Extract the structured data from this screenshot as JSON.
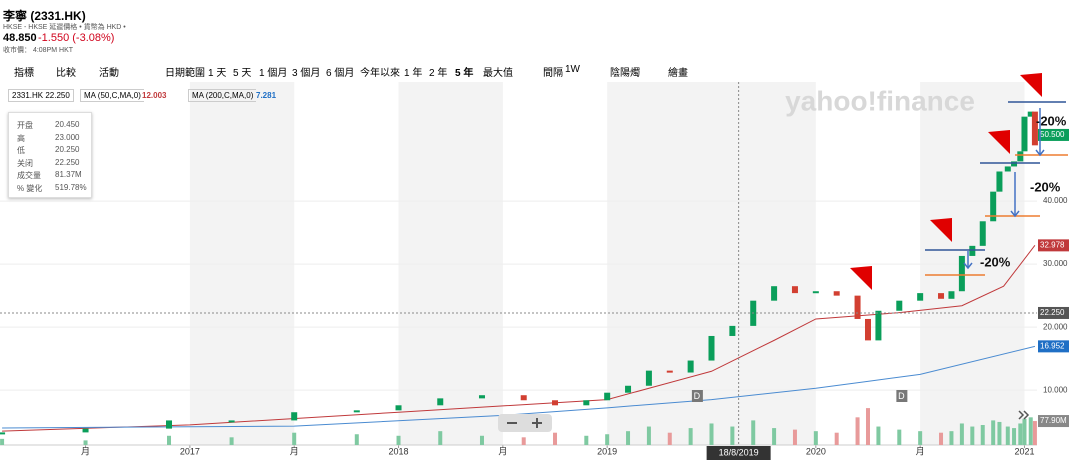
{
  "header": {
    "title": "李寧 (2331.HK)",
    "subtitle": "HKSE - HKSE 延遲價格 • 貨幣為 HKD •",
    "price": "48.850",
    "change": "-1.550 (-3.08%)",
    "close_time": "收市價： 4:08PM HKT"
  },
  "toolbar": {
    "left": [
      "指標",
      "比較",
      "活動"
    ],
    "ranges": [
      "日期範圍",
      "1 天",
      "5 天",
      "1 個月",
      "3 個月",
      "6 個月",
      "今年以來",
      "1 年",
      "2 年",
      "5 年",
      "最大值"
    ],
    "interval": "間隔",
    "interval_value": "1W",
    "chart_type": "陰陽燭",
    "draw": "繪畫"
  },
  "legend": {
    "symbol": "2331.HK 22.250",
    "ma50": "MA (50,C,MA,0)",
    "ma50_value": "12.003",
    "ma200": "MA (200,C,MA,0)",
    "ma200_value": "7.281"
  },
  "tooltip": {
    "labels": [
      "开盘",
      "高",
      "低",
      "关闭",
      "成交量",
      "% 變化"
    ],
    "values": [
      "20.450",
      "23.000",
      "20.250",
      "22.250",
      "81.37M",
      "519.78%"
    ]
  },
  "chart_data": {
    "type": "candlestick",
    "watermark": "yahoo!finance",
    "x": [
      2016.1,
      2016.5,
      2016.9,
      2017.2,
      2017.5,
      2017.8,
      2018.0,
      2018.2,
      2018.4,
      2018.6,
      2018.75,
      2018.9,
      2019.0,
      2019.1,
      2019.2,
      2019.3,
      2019.4,
      2019.5,
      2019.6,
      2019.7,
      2019.8,
      2019.9,
      2020.0,
      2020.1,
      2020.2,
      2020.25,
      2020.3,
      2020.4,
      2020.5,
      2020.6,
      2020.65,
      2020.7,
      2020.75,
      2020.8,
      2020.85,
      2020.88,
      2020.92,
      2020.95,
      2020.98,
      2021.0,
      2021.03,
      2021.05
    ],
    "series": [
      {
        "name": "2331.HK",
        "color": "#0a9e5a",
        "values": [
          3.3,
          3.9,
          5.2,
          5.2,
          6.5,
          6.8,
          7.6,
          8.7,
          9.2,
          8.4,
          7.6,
          8.4,
          9.6,
          10.7,
          13.1,
          12.8,
          14.7,
          18.6,
          20.2,
          24.2,
          26.5,
          25.4,
          25.7,
          25,
          21.3,
          17.9,
          22.6,
          24.2,
          25.4,
          24.5,
          25.7,
          31.3,
          32.9,
          36.8,
          41.5,
          44.7,
          45.5,
          46.3,
          47.9,
          53.4,
          54.2,
          48.85
        ]
      },
      {
        "name": "MA (50,C,MA,0)",
        "color": "#c0393b",
        "x": [
          2016.1,
          2017.0,
          2018.0,
          2018.5,
          2019.0,
          2019.5,
          2019.8,
          2020.0,
          2020.4,
          2020.7,
          2020.9,
          2021.05
        ],
        "values": [
          3.5,
          4.5,
          6.5,
          7.5,
          8.5,
          13,
          17.9,
          21.3,
          22.3,
          23.4,
          26.5,
          32.978
        ]
      },
      {
        "name": "MA (200,C,MA,0)",
        "color": "#4a8bd1",
        "x": [
          2016.1,
          2017.5,
          2018.5,
          2019.0,
          2019.5,
          2020.0,
          2020.5,
          2021.05
        ],
        "values": [
          4,
          4.3,
          6,
          7.2,
          8.5,
          10.3,
          12.5,
          16.952
        ]
      }
    ],
    "volume": {
      "color_up": "#7fc9a1",
      "color_down": "#e89a9a",
      "values": [
        20,
        15,
        30,
        25,
        40,
        35,
        30,
        45,
        30,
        25,
        40,
        30,
        35,
        45,
        60,
        40,
        55,
        70,
        60,
        80,
        55,
        50,
        45,
        40,
        90,
        120,
        60,
        50,
        45,
        40,
        45,
        70,
        60,
        65,
        80,
        75,
        60,
        55,
        70,
        85,
        90,
        77.9
      ],
      "ylim": [
        0,
        400
      ]
    },
    "xlim": [
      2016.09,
      2021.06
    ],
    "ylim": [
      1.3,
      58.9
    ],
    "xticks": [
      {
        "value": 2016.5,
        "label": "月"
      },
      2017,
      {
        "value": 2017.5,
        "label": "月"
      },
      2018,
      {
        "value": 2018.5,
        "label": "月"
      },
      2019,
      2020,
      {
        "value": 2020.5,
        "label": "月"
      },
      2021
    ],
    "yticks": [
      {
        "value": 10,
        "label": "10.000"
      },
      {
        "value": 20,
        "label": "20.000"
      },
      {
        "value": 30,
        "label": "30.000"
      },
      {
        "value": 40,
        "label": "40.000"
      }
    ],
    "price_tags": [
      {
        "value": 50.5,
        "label": "50.500",
        "color": "#0a9e5a"
      },
      {
        "value": 32.978,
        "label": "32.978",
        "color": "#c0393b"
      },
      {
        "value": 22.25,
        "label": "22.250",
        "color": "#555"
      },
      {
        "value": 16.952,
        "label": "16.952",
        "color": "#1f6fc5"
      }
    ],
    "volume_tag": {
      "value": 77.9,
      "label": "77.90M"
    },
    "crosshair": {
      "x": 2019.63,
      "x_label": "18/8/2019",
      "y": 22.25
    },
    "markers": [
      {
        "x": 2019.43,
        "label": "D"
      },
      {
        "x": 2020.41,
        "label": "D"
      }
    ],
    "annotations": [
      "-20%",
      "-20%",
      "-20%"
    ]
  }
}
